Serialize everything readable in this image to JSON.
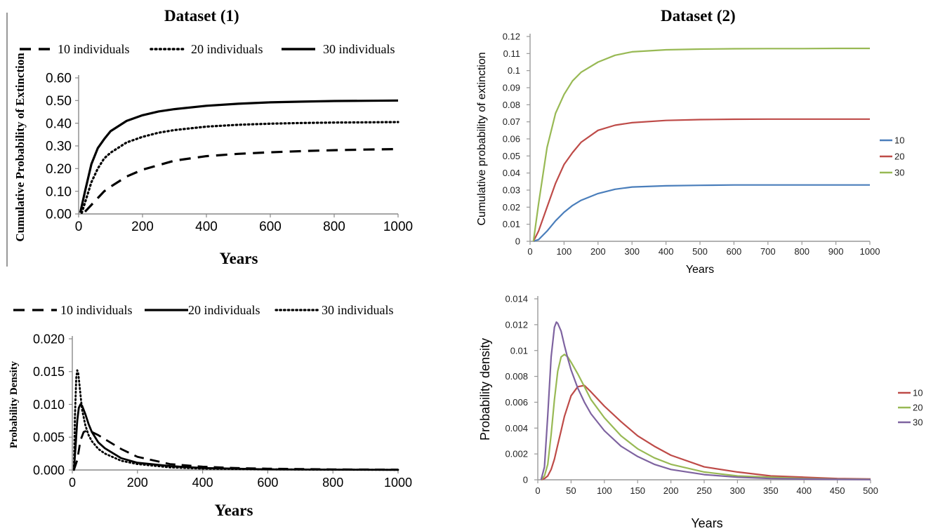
{
  "dataset_titles": [
    "Dataset (1)",
    "Dataset (2)"
  ],
  "chart_data": [
    {
      "id": "d1-cumulative",
      "type": "line",
      "ylabel": "Cumulative Probability of Extinction",
      "xlabel": "Years",
      "xlim": [
        0,
        1000
      ],
      "ylim": [
        0,
        0.6
      ],
      "x_ticks": [
        "0",
        "200",
        "400",
        "600",
        "800",
        "1000"
      ],
      "y_ticks": [
        "0.00",
        "0.10",
        "0.20",
        "0.30",
        "0.40",
        "0.50",
        "0.60"
      ],
      "legend_position": "top",
      "grid": false,
      "series": [
        {
          "name": "10 individuals",
          "style": "dashed",
          "color": "#000000",
          "x": [
            20,
            40,
            60,
            80,
            100,
            150,
            200,
            250,
            300,
            400,
            500,
            600,
            700,
            800,
            900,
            1000
          ],
          "y": [
            0.01,
            0.04,
            0.07,
            0.1,
            0.12,
            0.165,
            0.195,
            0.215,
            0.235,
            0.255,
            0.265,
            0.272,
            0.277,
            0.281,
            0.284,
            0.286
          ]
        },
        {
          "name": "20 individuals",
          "style": "dotted",
          "color": "#000000",
          "x": [
            10,
            20,
            40,
            60,
            80,
            100,
            150,
            200,
            250,
            300,
            400,
            500,
            600,
            700,
            800,
            900,
            1000
          ],
          "y": [
            0.005,
            0.05,
            0.14,
            0.2,
            0.245,
            0.27,
            0.315,
            0.34,
            0.358,
            0.37,
            0.385,
            0.393,
            0.398,
            0.401,
            0.403,
            0.404,
            0.405
          ]
        },
        {
          "name": "30 individuals",
          "style": "solid",
          "color": "#000000",
          "x": [
            5,
            20,
            40,
            60,
            80,
            100,
            150,
            200,
            250,
            300,
            400,
            500,
            600,
            700,
            800,
            900,
            1000
          ],
          "y": [
            0.005,
            0.1,
            0.22,
            0.29,
            0.33,
            0.365,
            0.41,
            0.435,
            0.452,
            0.462,
            0.477,
            0.486,
            0.492,
            0.495,
            0.498,
            0.499,
            0.5
          ]
        }
      ]
    },
    {
      "id": "d2-cumulative",
      "type": "line",
      "ylabel": "Cumulative probability of extinction",
      "xlabel": "Years",
      "xlim": [
        0,
        1000
      ],
      "ylim": [
        0,
        0.12
      ],
      "x_ticks": [
        "0",
        "100",
        "200",
        "300",
        "400",
        "500",
        "600",
        "700",
        "800",
        "900",
        "1000"
      ],
      "y_ticks": [
        "0",
        "0.01",
        "0.02",
        "0.03",
        "0.04",
        "0.05",
        "0.06",
        "0.07",
        "0.08",
        "0.09",
        "0.1",
        "0.11",
        "0.12"
      ],
      "legend_position": "right",
      "grid": false,
      "series": [
        {
          "name": "10",
          "color": "#4a7ebb",
          "x": [
            10,
            25,
            50,
            75,
            100,
            125,
            150,
            200,
            250,
            300,
            400,
            500,
            600,
            700,
            800,
            900,
            1000
          ],
          "y": [
            0,
            0.001,
            0.006,
            0.012,
            0.017,
            0.021,
            0.024,
            0.028,
            0.0305,
            0.0318,
            0.0325,
            0.0328,
            0.033,
            0.033,
            0.033,
            0.033,
            0.033
          ]
        },
        {
          "name": "20",
          "color": "#be4b48",
          "x": [
            10,
            25,
            50,
            75,
            100,
            125,
            150,
            200,
            250,
            300,
            400,
            500,
            600,
            700,
            800,
            900,
            1000
          ],
          "y": [
            0,
            0.006,
            0.02,
            0.034,
            0.045,
            0.052,
            0.058,
            0.065,
            0.068,
            0.0695,
            0.0708,
            0.0713,
            0.0715,
            0.0716,
            0.0716,
            0.0716,
            0.0716
          ]
        },
        {
          "name": "30",
          "color": "#98b954",
          "x": [
            10,
            25,
            50,
            75,
            100,
            125,
            150,
            200,
            250,
            300,
            400,
            500,
            600,
            700,
            800,
            900,
            1000
          ],
          "y": [
            0,
            0.022,
            0.055,
            0.075,
            0.086,
            0.094,
            0.099,
            0.105,
            0.109,
            0.111,
            0.1122,
            0.1126,
            0.1128,
            0.1129,
            0.1129,
            0.113,
            0.113
          ]
        }
      ]
    },
    {
      "id": "d1-density",
      "type": "line",
      "ylabel": "Probability Density",
      "xlabel": "Years",
      "xlim": [
        0,
        1000
      ],
      "ylim": [
        0,
        0.02
      ],
      "x_ticks": [
        "0",
        "200",
        "400",
        "600",
        "800",
        "1000"
      ],
      "y_ticks": [
        "0.000",
        "0.005",
        "0.010",
        "0.015",
        "0.020"
      ],
      "legend_position": "top",
      "grid": false,
      "series": [
        {
          "name": "10 individuals",
          "style": "dashed",
          "color": "#000000",
          "x": [
            5,
            15,
            25,
            35,
            45,
            60,
            80,
            100,
            150,
            200,
            300,
            400,
            500,
            600,
            800,
            1000
          ],
          "y": [
            0,
            0.0015,
            0.0045,
            0.0058,
            0.006,
            0.0058,
            0.0053,
            0.0047,
            0.0032,
            0.002,
            0.0009,
            0.0005,
            0.0003,
            0.0002,
            0.0001,
            5e-05
          ]
        },
        {
          "name": "20 individuals",
          "style": "solid",
          "color": "#000000",
          "x": [
            5,
            10,
            15,
            20,
            25,
            30,
            40,
            50,
            60,
            80,
            100,
            150,
            200,
            300,
            400,
            500,
            600,
            800,
            1000
          ],
          "y": [
            0,
            0.0035,
            0.0075,
            0.0095,
            0.01,
            0.0098,
            0.0085,
            0.007,
            0.0058,
            0.0042,
            0.0033,
            0.0018,
            0.0011,
            0.0006,
            0.0003,
            0.0002,
            0.0001,
            5e-05,
            2e-05
          ]
        },
        {
          "name": "30 individuals",
          "style": "dotted",
          "color": "#000000",
          "x": [
            5,
            8,
            12,
            15,
            18,
            22,
            26,
            30,
            40,
            50,
            60,
            80,
            100,
            150,
            200,
            300,
            400,
            600,
            800,
            1000
          ],
          "y": [
            0,
            0.008,
            0.014,
            0.0152,
            0.0148,
            0.013,
            0.011,
            0.0092,
            0.0068,
            0.0053,
            0.0044,
            0.0032,
            0.0025,
            0.0014,
            0.0009,
            0.0004,
            0.0002,
            0.0001,
            4e-05,
            2e-05
          ]
        }
      ]
    },
    {
      "id": "d2-density",
      "type": "line",
      "ylabel": "Probability density",
      "xlabel": "Years",
      "xlim": [
        0,
        500
      ],
      "ylim": [
        0,
        0.014
      ],
      "x_ticks": [
        "0",
        "50",
        "100",
        "150",
        "200",
        "250",
        "300",
        "350",
        "400",
        "450",
        "500"
      ],
      "y_ticks": [
        "0",
        "0.002",
        "0.004",
        "0.006",
        "0.008",
        "0.01",
        "0.012",
        "0.014"
      ],
      "legend_position": "right",
      "grid": false,
      "series": [
        {
          "name": "10",
          "color": "#be4b48",
          "x": [
            5,
            10,
            15,
            20,
            25,
            30,
            35,
            40,
            50,
            60,
            70,
            80,
            100,
            125,
            150,
            175,
            200,
            250,
            300,
            350,
            400,
            450,
            500
          ],
          "y": [
            0,
            0.0001,
            0.0003,
            0.0008,
            0.0016,
            0.0027,
            0.0038,
            0.0049,
            0.0065,
            0.0072,
            0.0073,
            0.0068,
            0.0057,
            0.0045,
            0.0034,
            0.0026,
            0.0019,
            0.001,
            0.0006,
            0.0003,
            0.0002,
            0.0001,
            6e-05
          ]
        },
        {
          "name": "20",
          "color": "#98b954",
          "x": [
            5,
            10,
            15,
            20,
            25,
            30,
            35,
            40,
            45,
            50,
            60,
            70,
            80,
            100,
            125,
            150,
            175,
            200,
            250,
            300,
            350,
            400,
            450,
            500
          ],
          "y": [
            0,
            0.0003,
            0.0012,
            0.0035,
            0.0062,
            0.0084,
            0.0095,
            0.0097,
            0.0095,
            0.0091,
            0.0082,
            0.0072,
            0.0062,
            0.0048,
            0.0034,
            0.0024,
            0.0017,
            0.0012,
            0.0006,
            0.0003,
            0.0002,
            0.0001,
            5e-05,
            3e-05
          ]
        },
        {
          "name": "30",
          "color": "#7e63a0",
          "x": [
            5,
            10,
            15,
            20,
            25,
            28,
            30,
            35,
            40,
            45,
            50,
            60,
            70,
            80,
            100,
            125,
            150,
            175,
            200,
            250,
            300,
            350,
            400,
            450,
            500
          ],
          "y": [
            0,
            0.001,
            0.005,
            0.0095,
            0.0118,
            0.0122,
            0.0121,
            0.0115,
            0.0104,
            0.0094,
            0.0085,
            0.0071,
            0.006,
            0.0051,
            0.0038,
            0.0026,
            0.0018,
            0.0012,
            0.0008,
            0.0004,
            0.0002,
            0.0001,
            6e-05,
            3e-05,
            2e-05
          ]
        }
      ]
    }
  ]
}
